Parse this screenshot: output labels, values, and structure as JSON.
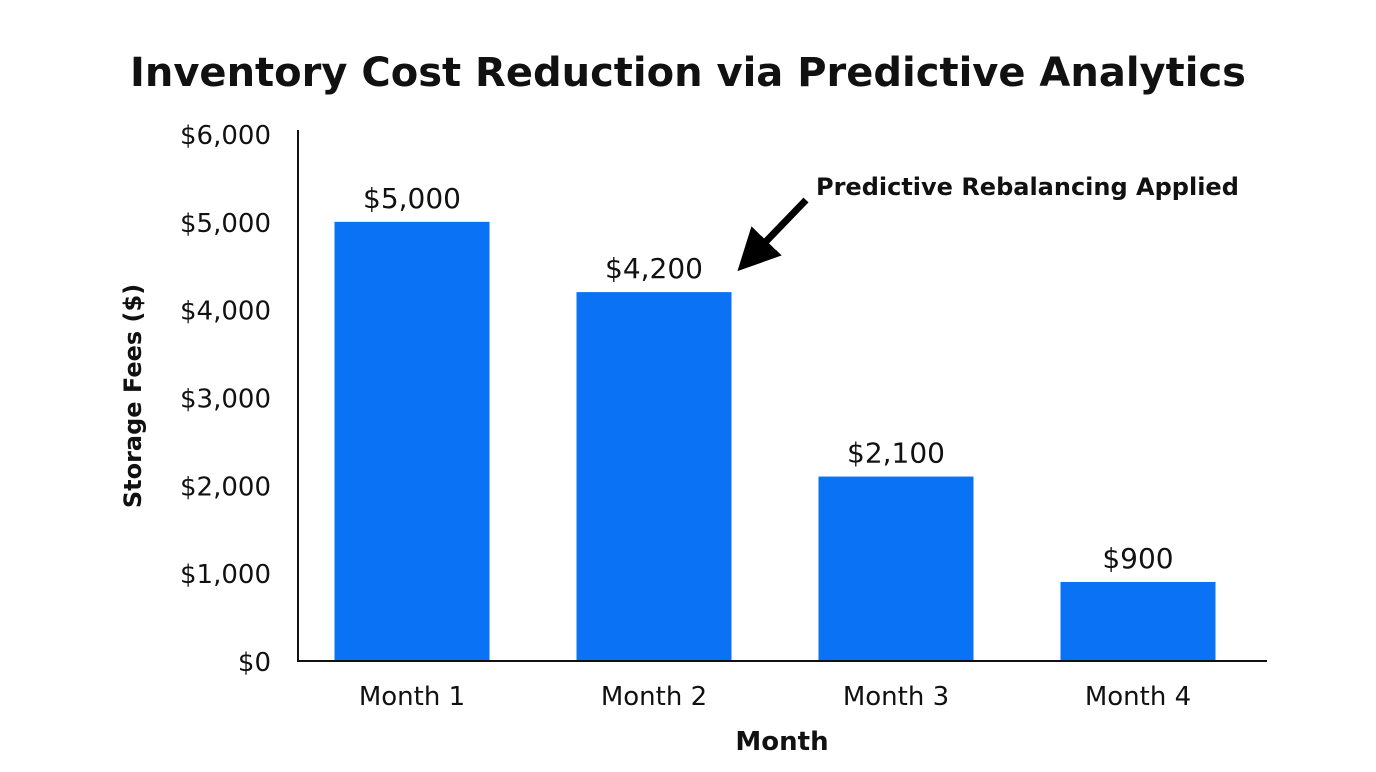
{
  "chart_data": {
    "type": "bar",
    "title": "Inventory Cost Reduction via Predictive Analytics",
    "xlabel": "Month",
    "ylabel": "Storage Fees ($)",
    "categories": [
      "Month 1",
      "Month 2",
      "Month 3",
      "Month 4"
    ],
    "values": [
      5000,
      4200,
      2100,
      900
    ],
    "data_labels": [
      "$5,000",
      "$4,200",
      "$2,100",
      "$900"
    ],
    "ylim": [
      0,
      6000
    ],
    "yticks": [
      0,
      1000,
      2000,
      3000,
      4000,
      5000,
      6000
    ],
    "ytick_labels": [
      "$0",
      "$1,000",
      "$2,000",
      "$3,000",
      "$4,000",
      "$5,000",
      "$6,000"
    ],
    "grid": false,
    "bar_color": "#0a72f5",
    "annotation": {
      "text": "Predictive Rebalancing Applied",
      "target_category": "Month 2"
    }
  }
}
